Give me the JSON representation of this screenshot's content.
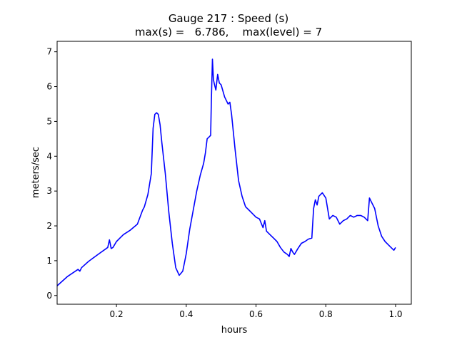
{
  "chart_data": {
    "type": "line",
    "title_line1": "Gauge 217 : Speed (s)",
    "title_line2": "max(s) =   6.786,    max(level) = 7",
    "xlabel": "hours",
    "ylabel": "meters/sec",
    "xlim": [
      0.03,
      1.045
    ],
    "ylim": [
      -0.25,
      7.3
    ],
    "xticks": [
      0.2,
      0.4,
      0.6,
      0.8,
      1.0
    ],
    "xtick_labels": [
      "0.2",
      "0.4",
      "0.6",
      "0.8",
      "1.0"
    ],
    "yticks": [
      0,
      1,
      2,
      3,
      4,
      5,
      6,
      7
    ],
    "ytick_labels": [
      "0",
      "1",
      "2",
      "3",
      "4",
      "5",
      "6",
      "7"
    ],
    "grid": false,
    "series": [
      {
        "color": "#0000ff",
        "x": [
          0.03,
          0.06,
          0.09,
          0.095,
          0.1,
          0.12,
          0.15,
          0.175,
          0.18,
          0.185,
          0.19,
          0.2,
          0.21,
          0.22,
          0.24,
          0.26,
          0.275,
          0.28,
          0.29,
          0.3,
          0.305,
          0.31,
          0.315,
          0.32,
          0.325,
          0.33,
          0.34,
          0.35,
          0.36,
          0.37,
          0.38,
          0.39,
          0.395,
          0.4,
          0.41,
          0.42,
          0.43,
          0.44,
          0.45,
          0.455,
          0.46,
          0.465,
          0.47,
          0.472,
          0.475,
          0.478,
          0.48,
          0.485,
          0.49,
          0.495,
          0.5,
          0.51,
          0.52,
          0.525,
          0.53,
          0.54,
          0.55,
          0.56,
          0.57,
          0.58,
          0.59,
          0.6,
          0.61,
          0.62,
          0.625,
          0.63,
          0.64,
          0.65,
          0.66,
          0.67,
          0.68,
          0.69,
          0.695,
          0.7,
          0.705,
          0.71,
          0.72,
          0.73,
          0.74,
          0.75,
          0.76,
          0.765,
          0.77,
          0.775,
          0.78,
          0.785,
          0.79,
          0.8,
          0.81,
          0.82,
          0.83,
          0.84,
          0.85,
          0.86,
          0.87,
          0.88,
          0.89,
          0.9,
          0.91,
          0.92,
          0.925,
          0.93,
          0.94,
          0.95,
          0.96,
          0.97,
          0.98,
          0.99,
          0.995,
          1.0
        ],
        "y": [
          0.28,
          0.55,
          0.75,
          0.7,
          0.8,
          0.98,
          1.2,
          1.38,
          1.6,
          1.35,
          1.38,
          1.55,
          1.65,
          1.75,
          1.88,
          2.05,
          2.45,
          2.55,
          2.9,
          3.5,
          4.8,
          5.2,
          5.25,
          5.2,
          4.9,
          4.4,
          3.5,
          2.4,
          1.5,
          0.8,
          0.58,
          0.7,
          0.95,
          1.2,
          1.9,
          2.45,
          3.0,
          3.45,
          3.8,
          4.1,
          4.5,
          4.55,
          4.6,
          5.6,
          6.786,
          6.2,
          6.1,
          5.9,
          6.35,
          6.1,
          6.05,
          5.7,
          5.5,
          5.55,
          5.2,
          4.2,
          3.3,
          2.85,
          2.55,
          2.45,
          2.35,
          2.25,
          2.2,
          1.95,
          2.15,
          1.85,
          1.75,
          1.65,
          1.55,
          1.38,
          1.25,
          1.18,
          1.12,
          1.35,
          1.25,
          1.18,
          1.35,
          1.5,
          1.55,
          1.62,
          1.65,
          2.5,
          2.75,
          2.6,
          2.85,
          2.9,
          2.95,
          2.8,
          2.2,
          2.3,
          2.25,
          2.05,
          2.15,
          2.2,
          2.3,
          2.25,
          2.3,
          2.3,
          2.25,
          2.15,
          2.8,
          2.7,
          2.5,
          2.0,
          1.7,
          1.55,
          1.45,
          1.35,
          1.3,
          1.38
        ]
      }
    ]
  }
}
